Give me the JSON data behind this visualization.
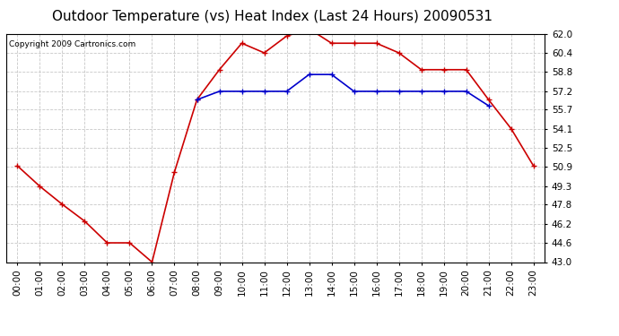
{
  "title": "Outdoor Temperature (vs) Heat Index (Last 24 Hours) 20090531",
  "copyright": "Copyright 2009 Cartronics.com",
  "hours": [
    "00:00",
    "01:00",
    "02:00",
    "03:00",
    "04:00",
    "05:00",
    "06:00",
    "07:00",
    "08:00",
    "09:00",
    "10:00",
    "11:00",
    "12:00",
    "13:00",
    "14:00",
    "15:00",
    "16:00",
    "17:00",
    "18:00",
    "19:00",
    "20:00",
    "21:00",
    "22:00",
    "23:00"
  ],
  "temp": [
    51.0,
    49.3,
    47.8,
    46.4,
    44.6,
    44.6,
    43.0,
    50.5,
    56.5,
    59.0,
    61.2,
    60.4,
    61.8,
    62.4,
    61.2,
    61.2,
    61.2,
    60.4,
    59.0,
    59.0,
    59.0,
    56.5,
    54.1,
    51.0
  ],
  "heat_index": [
    null,
    null,
    null,
    null,
    null,
    null,
    null,
    null,
    56.5,
    57.2,
    57.2,
    57.2,
    57.2,
    58.6,
    58.6,
    57.2,
    57.2,
    57.2,
    57.2,
    57.2,
    57.2,
    56.0,
    null,
    null
  ],
  "temp_color": "#cc0000",
  "heat_color": "#0000cc",
  "bg_color": "#ffffff",
  "grid_color": "#c8c8c8",
  "marker": "+",
  "ylim_min": 43.0,
  "ylim_max": 62.0,
  "yticks": [
    43.0,
    44.6,
    46.2,
    47.8,
    49.3,
    50.9,
    52.5,
    54.1,
    55.7,
    57.2,
    58.8,
    60.4,
    62.0
  ],
  "title_fontsize": 11,
  "copyright_fontsize": 6.5,
  "tick_fontsize": 7.5
}
